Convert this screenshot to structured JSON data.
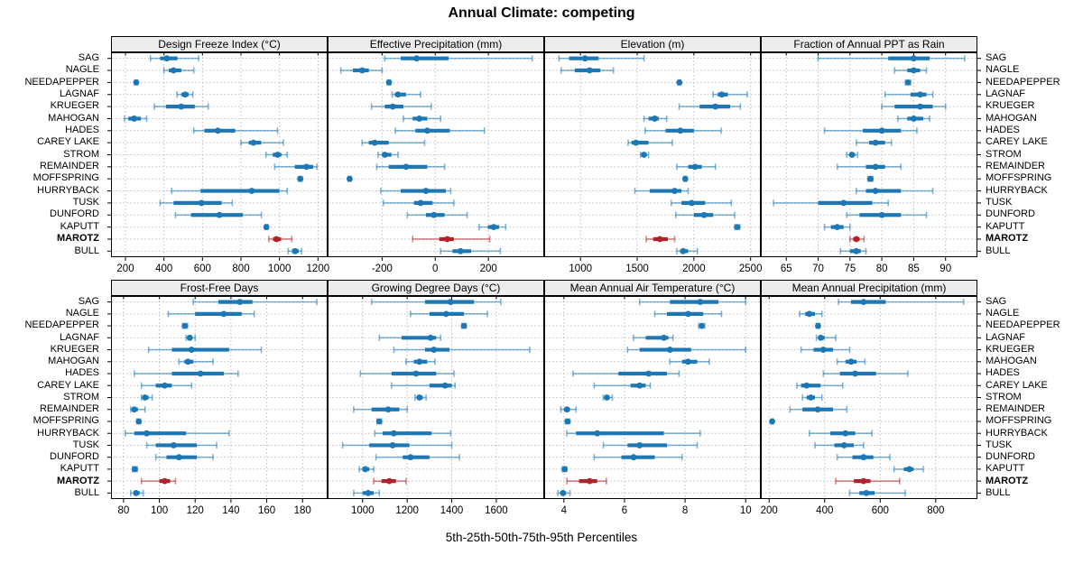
{
  "title": "Annual Climate: competing",
  "caption": "5th-25th-50th-75th-95th Percentiles",
  "legend_note": "percentile whisker plot: thin line 5th-95th, thick bar 25th-75th, dot 50th",
  "colors": {
    "series_blue": "#1c77b4",
    "highlight_red": "#b2222a",
    "strip_bg": "#ececec",
    "grid": "#bfbfbf",
    "border": "#000000"
  },
  "sites": [
    "SAG",
    "NAGLE",
    "NEEDAPEPPER",
    "LAGNAF",
    "KRUEGER",
    "MAHOGAN",
    "HADES",
    "CAREY LAKE",
    "STROM",
    "REMAINDER",
    "MOFFSPRING",
    "HURRYBACK",
    "TUSK",
    "DUNFORD",
    "KAPUTT",
    "MAROTZ",
    "BULL"
  ],
  "highlight_site": "MAROTZ",
  "chart_data": [
    {
      "type": "dotplot-percentiles",
      "title": "Design Freeze Index (°C)",
      "percentiles": [
        5,
        25,
        50,
        75,
        95
      ],
      "xlim": [
        125,
        1250
      ],
      "ticks": [
        200,
        400,
        600,
        800,
        1000,
        1200
      ],
      "values": [
        [
          330,
          380,
          415,
          470,
          580
        ],
        [
          400,
          425,
          450,
          490,
          555
        ],
        [
          248,
          252,
          256,
          260,
          264
        ],
        [
          468,
          490,
          510,
          528,
          550
        ],
        [
          350,
          410,
          490,
          560,
          630
        ],
        [
          195,
          215,
          245,
          280,
          310
        ],
        [
          555,
          610,
          680,
          770,
          990
        ],
        [
          800,
          840,
          865,
          905,
          1020
        ],
        [
          930,
          965,
          990,
          1010,
          1040
        ],
        [
          975,
          1080,
          1140,
          1175,
          1195
        ],
        [
          1098,
          1104,
          1108,
          1113,
          1118
        ],
        [
          440,
          590,
          856,
          1000,
          1040
        ],
        [
          380,
          450,
          595,
          700,
          755
        ],
        [
          460,
          540,
          688,
          810,
          906
        ],
        [
          925,
          929,
          932,
          936,
          940
        ],
        [
          945,
          966,
          985,
          1008,
          1064
        ],
        [
          1045,
          1065,
          1081,
          1100,
          1115
        ]
      ]
    },
    {
      "type": "dotplot-percentiles",
      "title": "Effective Precipitation (mm)",
      "percentiles": [
        5,
        25,
        50,
        75,
        95
      ],
      "xlim": [
        -405,
        410
      ],
      "ticks": [
        -200,
        0,
        200
      ],
      "values": [
        [
          -190,
          -130,
          -70,
          50,
          365
        ],
        [
          -355,
          -310,
          -275,
          -250,
          -200
        ],
        [
          -180,
          -177,
          -174,
          -171,
          -168
        ],
        [
          -162,
          -152,
          -140,
          -110,
          -55
        ],
        [
          -240,
          -190,
          -160,
          -120,
          -15
        ],
        [
          -120,
          -85,
          -60,
          -30,
          20
        ],
        [
          -150,
          -75,
          -30,
          55,
          185
        ],
        [
          -275,
          -250,
          -228,
          -175,
          -40
        ],
        [
          -215,
          -200,
          -190,
          -165,
          -140
        ],
        [
          -220,
          -175,
          -110,
          -30,
          35
        ],
        [
          -328,
          -325,
          -322,
          -319,
          -316
        ],
        [
          -205,
          -130,
          -35,
          40,
          58
        ],
        [
          -195,
          -80,
          -55,
          -10,
          70
        ],
        [
          -105,
          -35,
          -5,
          35,
          120
        ],
        [
          165,
          198,
          220,
          240,
          265
        ],
        [
          -85,
          15,
          45,
          70,
          205
        ],
        [
          20,
          65,
          95,
          135,
          245
        ]
      ]
    },
    {
      "type": "dotplot-percentiles",
      "title": "Elevation (m)",
      "percentiles": [
        5,
        25,
        50,
        75,
        95
      ],
      "xlim": [
        680,
        2590
      ],
      "ticks": [
        1000,
        1500,
        2000,
        2500
      ],
      "values": [
        [
          810,
          900,
          1040,
          1160,
          1560
        ],
        [
          830,
          950,
          1080,
          1175,
          1290
        ],
        [
          1860,
          1866,
          1872,
          1878,
          1884
        ],
        [
          2170,
          2210,
          2245,
          2300,
          2470
        ],
        [
          1870,
          2050,
          2190,
          2320,
          2410
        ],
        [
          1560,
          1600,
          1655,
          1690,
          1760
        ],
        [
          1570,
          1750,
          1880,
          2000,
          2240
        ],
        [
          1420,
          1450,
          1490,
          1600,
          1810
        ],
        [
          1530,
          1545,
          1560,
          1580,
          1600
        ],
        [
          1850,
          1950,
          2010,
          2070,
          2190
        ],
        [
          1912,
          1918,
          1924,
          1930,
          1936
        ],
        [
          1480,
          1610,
          1830,
          1890,
          1950
        ],
        [
          1800,
          1890,
          1980,
          2100,
          2330
        ],
        [
          1840,
          2000,
          2090,
          2170,
          2360
        ],
        [
          2360,
          2372,
          2382,
          2392,
          2405
        ],
        [
          1580,
          1640,
          1700,
          1770,
          1830
        ],
        [
          1850,
          1880,
          1905,
          1950,
          2030
        ]
      ]
    },
    {
      "type": "dotplot-percentiles",
      "title": "Fraction of Annual PPT as Rain",
      "percentiles": [
        5,
        25,
        50,
        75,
        95
      ],
      "xlim": [
        61,
        95
      ],
      "ticks": [
        65,
        70,
        75,
        80,
        85,
        90
      ],
      "values": [
        [
          70,
          81,
          85,
          87.5,
          93
        ],
        [
          82,
          84,
          85,
          86,
          87
        ],
        [
          83.7,
          83.9,
          84.1,
          84.3,
          84.5
        ],
        [
          80.5,
          84.5,
          86,
          87,
          88
        ],
        [
          80,
          82,
          86,
          88,
          90
        ],
        [
          82.5,
          84,
          85,
          86.5,
          87.5
        ],
        [
          71,
          77,
          80,
          83,
          85.5
        ],
        [
          76,
          78,
          79,
          80.5,
          81.5
        ],
        [
          74.5,
          75,
          75.3,
          75.8,
          76.2
        ],
        [
          73,
          77.5,
          79,
          80.5,
          83
        ],
        [
          77.8,
          78,
          78.2,
          78.4,
          78.6
        ],
        [
          76,
          77.5,
          79,
          83,
          88
        ],
        [
          63,
          70,
          74,
          78.5,
          81
        ],
        [
          74.5,
          76.5,
          80,
          83,
          87
        ],
        [
          71,
          72,
          73,
          74,
          75
        ],
        [
          75,
          75.5,
          76,
          76.5,
          77.2
        ],
        [
          73.5,
          75,
          76,
          76.7,
          77.5
        ]
      ]
    },
    {
      "type": "dotplot-percentiles",
      "title": "Frost-Free Days",
      "percentiles": [
        5,
        25,
        50,
        75,
        95
      ],
      "xlim": [
        73,
        194
      ],
      "ticks": [
        80,
        100,
        120,
        140,
        160,
        180
      ],
      "values": [
        [
          119,
          133,
          145,
          152,
          188
        ],
        [
          105,
          120,
          136,
          146,
          153
        ],
        [
          113,
          113.7,
          114.3,
          115,
          115.7
        ],
        [
          115,
          116,
          117,
          118.5,
          120
        ],
        [
          94,
          107,
          118,
          139,
          157
        ],
        [
          111,
          114,
          116,
          119,
          130
        ],
        [
          86,
          107,
          123,
          136,
          144
        ],
        [
          90,
          98,
          103,
          107,
          118
        ],
        [
          90,
          91,
          92,
          94,
          96
        ],
        [
          84,
          85,
          86,
          88,
          92
        ],
        [
          87.5,
          88,
          88.5,
          89,
          89.5
        ],
        [
          81,
          86,
          93,
          115,
          139
        ],
        [
          93,
          98,
          108,
          121,
          132
        ],
        [
          98,
          104,
          111,
          121,
          130
        ],
        [
          85,
          85.7,
          86.3,
          87,
          87.7
        ],
        [
          90,
          100,
          103,
          106,
          109
        ],
        [
          84,
          85.5,
          87,
          89,
          91
        ]
      ]
    },
    {
      "type": "dotplot-percentiles",
      "title": "Growing Degree Days (°C)",
      "percentiles": [
        5,
        25,
        50,
        75,
        95
      ],
      "xlim": [
        843,
        1815
      ],
      "ticks": [
        1000,
        1200,
        1400,
        1600
      ],
      "values": [
        [
          1040,
          1280,
          1395,
          1500,
          1620
        ],
        [
          1215,
          1300,
          1375,
          1455,
          1560
        ],
        [
          1445,
          1450,
          1455,
          1460,
          1465
        ],
        [
          1075,
          1175,
          1305,
          1330,
          1350
        ],
        [
          1140,
          1280,
          1320,
          1390,
          1750
        ],
        [
          1195,
          1230,
          1255,
          1290,
          1325
        ],
        [
          990,
          1130,
          1240,
          1330,
          1410
        ],
        [
          1130,
          1300,
          1370,
          1400,
          1415
        ],
        [
          1235,
          1245,
          1255,
          1270,
          1285
        ],
        [
          960,
          1040,
          1115,
          1165,
          1200
        ],
        [
          1065,
          1070,
          1075,
          1080,
          1085
        ],
        [
          1055,
          1090,
          1140,
          1310,
          1395
        ],
        [
          910,
          1030,
          1135,
          1210,
          1400
        ],
        [
          1060,
          1180,
          1215,
          1300,
          1435
        ],
        [
          985,
          1000,
          1012,
          1030,
          1050
        ],
        [
          1050,
          1085,
          1120,
          1150,
          1195
        ],
        [
          960,
          1000,
          1025,
          1050,
          1075
        ]
      ]
    },
    {
      "type": "dotplot-percentiles",
      "title": "Mean Annual Air Temperature (°C)",
      "percentiles": [
        5,
        25,
        50,
        75,
        95
      ],
      "xlim": [
        3.35,
        10.5
      ],
      "ticks": [
        4,
        6,
        8,
        10
      ],
      "values": [
        [
          6.5,
          7.5,
          8.5,
          9.1,
          10.0
        ],
        [
          7.0,
          7.4,
          8.1,
          8.6,
          9.2
        ],
        [
          8.45,
          8.5,
          8.55,
          8.6,
          8.65
        ],
        [
          6.3,
          6.7,
          7.3,
          7.45,
          7.6
        ],
        [
          6.1,
          6.5,
          7.5,
          8.2,
          10.0
        ],
        [
          7.5,
          7.9,
          8.1,
          8.4,
          8.8
        ],
        [
          4.3,
          5.8,
          6.8,
          7.4,
          7.8
        ],
        [
          5.0,
          6.2,
          6.5,
          6.7,
          6.85
        ],
        [
          5.3,
          5.35,
          5.42,
          5.5,
          5.6
        ],
        [
          3.9,
          4.0,
          4.1,
          4.2,
          4.4
        ],
        [
          4.05,
          4.08,
          4.12,
          4.16,
          4.2
        ],
        [
          4.1,
          4.4,
          5.1,
          7.3,
          8.5
        ],
        [
          5.3,
          6.1,
          6.5,
          7.4,
          8.4
        ],
        [
          5.0,
          5.9,
          6.3,
          7.0,
          7.9
        ],
        [
          3.95,
          3.98,
          4.02,
          4.06,
          4.1
        ],
        [
          4.1,
          4.5,
          4.85,
          5.1,
          5.4
        ],
        [
          3.8,
          3.9,
          3.97,
          4.07,
          4.2
        ]
      ]
    },
    {
      "type": "dotplot-percentiles",
      "title": "Mean Annual Precipitation (mm)",
      "percentiles": [
        5,
        25,
        50,
        75,
        95
      ],
      "xlim": [
        170,
        950
      ],
      "ticks": [
        200,
        400,
        600,
        800
      ],
      "values": [
        [
          450,
          495,
          540,
          620,
          900
        ],
        [
          310,
          330,
          345,
          365,
          390
        ],
        [
          370,
          373,
          376,
          379,
          382
        ],
        [
          370,
          378,
          386,
          400,
          440
        ],
        [
          315,
          360,
          395,
          430,
          490
        ],
        [
          445,
          475,
          495,
          515,
          545
        ],
        [
          395,
          455,
          510,
          585,
          700
        ],
        [
          300,
          315,
          335,
          385,
          465
        ],
        [
          320,
          335,
          350,
          365,
          390
        ],
        [
          275,
          320,
          375,
          430,
          480
        ],
        [
          207,
          209,
          211,
          213,
          215
        ],
        [
          345,
          420,
          475,
          510,
          570
        ],
        [
          365,
          435,
          470,
          505,
          540
        ],
        [
          445,
          500,
          540,
          575,
          635
        ],
        [
          650,
          685,
          705,
          720,
          755
        ],
        [
          440,
          505,
          540,
          565,
          670
        ],
        [
          490,
          525,
          550,
          580,
          690
        ]
      ]
    }
  ]
}
